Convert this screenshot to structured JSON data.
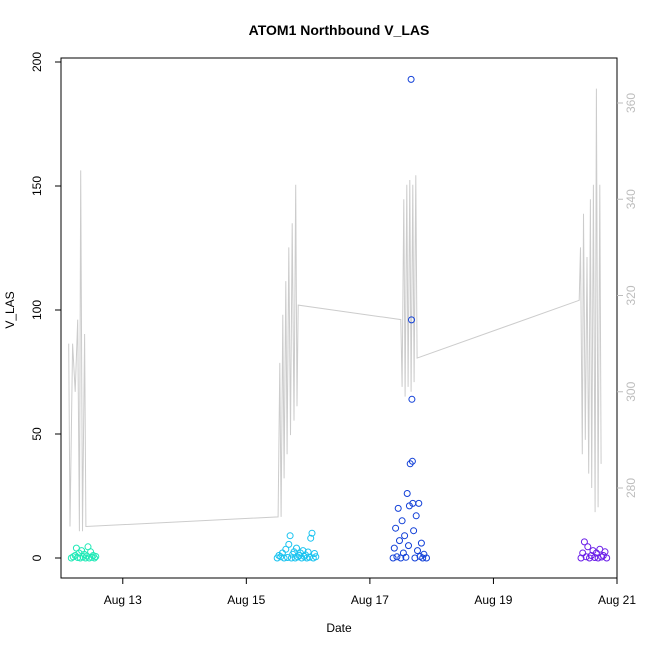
{
  "chart_data": {
    "type": "scatter",
    "title": "ATOM1 Northbound V_LAS",
    "xlabel": "Date",
    "ylabel": "V_LAS",
    "xlim": [
      "2023-08-12T00:00:00",
      "2023-08-21T00:00:00"
    ],
    "ylim_left": [
      0,
      200
    ],
    "ylim_right": [
      260,
      365
    ],
    "x_ticks": [
      {
        "label": "Aug 13",
        "date": "2023-08-13T00:00:00"
      },
      {
        "label": "Aug 15",
        "date": "2023-08-15T00:00:00"
      },
      {
        "label": "Aug 17",
        "date": "2023-08-17T00:00:00"
      },
      {
        "label": "Aug 19",
        "date": "2023-08-19T00:00:00"
      },
      {
        "label": "Aug 21",
        "date": "2023-08-21T00:00:00"
      }
    ],
    "y_ticks_left": [
      0,
      50,
      100,
      150,
      200
    ],
    "y_ticks_right": [
      280,
      300,
      320,
      340,
      360
    ],
    "grid": false,
    "series": [
      {
        "kind": "scatter",
        "axis": "left",
        "color": "#1de9b6",
        "points": [
          [
            "2023-08-12T04:00:00",
            0
          ],
          [
            "2023-08-12T04:45:00",
            0.5
          ],
          [
            "2023-08-12T05:30:00",
            1
          ],
          [
            "2023-08-12T06:00:00",
            4
          ],
          [
            "2023-08-12T06:30:00",
            0.2
          ],
          [
            "2023-08-12T07:00:00",
            2
          ],
          [
            "2023-08-12T07:30:00",
            0
          ],
          [
            "2023-08-12T08:00:00",
            3
          ],
          [
            "2023-08-12T08:30:00",
            0.5
          ],
          [
            "2023-08-12T09:00:00",
            1.5
          ],
          [
            "2023-08-12T09:30:00",
            0
          ],
          [
            "2023-08-12T10:00:00",
            0.8
          ],
          [
            "2023-08-12T10:30:00",
            4.5
          ],
          [
            "2023-08-12T11:00:00",
            0
          ],
          [
            "2023-08-12T11:30:00",
            2.5
          ],
          [
            "2023-08-12T12:00:00",
            0.3
          ],
          [
            "2023-08-12T12:30:00",
            1
          ],
          [
            "2023-08-12T13:00:00",
            0
          ],
          [
            "2023-08-12T13:30:00",
            0.6
          ]
        ]
      },
      {
        "kind": "scatter",
        "axis": "left",
        "color": "#19c3f0",
        "points": [
          [
            "2023-08-15T12:00:00",
            0
          ],
          [
            "2023-08-15T12:40:00",
            1
          ],
          [
            "2023-08-15T13:20:00",
            0.5
          ],
          [
            "2023-08-15T14:00:00",
            2
          ],
          [
            "2023-08-15T14:40:00",
            0
          ],
          [
            "2023-08-15T15:20:00",
            3.5
          ],
          [
            "2023-08-15T16:00:00",
            0.2
          ],
          [
            "2023-08-15T16:30:00",
            5.5
          ],
          [
            "2023-08-15T17:00:00",
            9
          ],
          [
            "2023-08-15T17:30:00",
            0
          ],
          [
            "2023-08-15T18:00:00",
            1.5
          ],
          [
            "2023-08-15T18:30:00",
            2.5
          ],
          [
            "2023-08-15T19:00:00",
            0
          ],
          [
            "2023-08-15T19:30:00",
            4
          ],
          [
            "2023-08-15T20:00:00",
            0.4
          ],
          [
            "2023-08-15T20:30:00",
            1
          ],
          [
            "2023-08-15T21:00:00",
            2
          ],
          [
            "2023-08-15T21:30:00",
            0
          ],
          [
            "2023-08-15T22:00:00",
            3
          ],
          [
            "2023-08-15T22:30:00",
            0.6
          ],
          [
            "2023-08-15T23:00:00",
            1.2
          ],
          [
            "2023-08-15T23:30:00",
            0
          ],
          [
            "2023-08-16T00:00:00",
            2.4
          ],
          [
            "2023-08-16T00:30:00",
            0.3
          ],
          [
            "2023-08-16T01:00:00",
            8
          ],
          [
            "2023-08-16T01:30:00",
            10
          ],
          [
            "2023-08-16T02:00:00",
            0
          ],
          [
            "2023-08-16T02:30:00",
            1.8
          ],
          [
            "2023-08-16T03:00:00",
            0.5
          ]
        ]
      },
      {
        "kind": "scatter",
        "axis": "left",
        "color": "#1240d8",
        "points": [
          [
            "2023-08-17T09:00:00",
            0
          ],
          [
            "2023-08-17T09:30:00",
            4
          ],
          [
            "2023-08-17T10:00:00",
            12
          ],
          [
            "2023-08-17T10:30:00",
            0.5
          ],
          [
            "2023-08-17T11:00:00",
            20
          ],
          [
            "2023-08-17T11:30:00",
            7
          ],
          [
            "2023-08-17T12:00:00",
            0
          ],
          [
            "2023-08-17T12:30:00",
            15
          ],
          [
            "2023-08-17T13:00:00",
            2
          ],
          [
            "2023-08-17T13:30:00",
            9
          ],
          [
            "2023-08-17T14:00:00",
            0.3
          ],
          [
            "2023-08-17T14:30:00",
            26
          ],
          [
            "2023-08-17T15:00:00",
            5
          ],
          [
            "2023-08-17T15:20:00",
            21
          ],
          [
            "2023-08-17T15:40:00",
            38
          ],
          [
            "2023-08-17T16:00:00",
            193
          ],
          [
            "2023-08-17T16:10:00",
            96
          ],
          [
            "2023-08-17T16:20:00",
            64
          ],
          [
            "2023-08-17T16:30:00",
            39
          ],
          [
            "2023-08-17T16:40:00",
            22
          ],
          [
            "2023-08-17T17:00:00",
            11
          ],
          [
            "2023-08-17T17:30:00",
            0
          ],
          [
            "2023-08-17T18:00:00",
            17
          ],
          [
            "2023-08-17T18:30:00",
            3
          ],
          [
            "2023-08-17T19:00:00",
            22
          ],
          [
            "2023-08-17T19:30:00",
            0.6
          ],
          [
            "2023-08-17T20:00:00",
            6
          ],
          [
            "2023-08-17T20:30:00",
            0
          ],
          [
            "2023-08-17T21:00:00",
            1.5
          ],
          [
            "2023-08-17T22:00:00",
            0
          ]
        ]
      },
      {
        "kind": "scatter",
        "axis": "left",
        "color": "#6a1de8",
        "points": [
          [
            "2023-08-20T10:00:00",
            0
          ],
          [
            "2023-08-20T10:40:00",
            2
          ],
          [
            "2023-08-20T11:20:00",
            6.5
          ],
          [
            "2023-08-20T12:00:00",
            0.5
          ],
          [
            "2023-08-20T12:40:00",
            4.5
          ],
          [
            "2023-08-20T13:20:00",
            0
          ],
          [
            "2023-08-20T14:00:00",
            1
          ],
          [
            "2023-08-20T14:40:00",
            3
          ],
          [
            "2023-08-20T15:20:00",
            0.2
          ],
          [
            "2023-08-20T16:00:00",
            2
          ],
          [
            "2023-08-20T16:40:00",
            0
          ],
          [
            "2023-08-20T17:20:00",
            3.5
          ],
          [
            "2023-08-20T18:00:00",
            0.4
          ],
          [
            "2023-08-20T18:40:00",
            1
          ],
          [
            "2023-08-20T19:20:00",
            2.5
          ],
          [
            "2023-08-20T20:00:00",
            0
          ]
        ]
      },
      {
        "kind": "line",
        "axis": "right",
        "color": "#cccccc",
        "points": [
          [
            "2023-08-12T03:00:00",
            310
          ],
          [
            "2023-08-12T03:30:00",
            272
          ],
          [
            "2023-08-12T04:30:00",
            310
          ],
          [
            "2023-08-12T05:30:00",
            300
          ],
          [
            "2023-08-12T06:30:00",
            315
          ],
          [
            "2023-08-12T07:10:00",
            271
          ],
          [
            "2023-08-12T07:40:00",
            346
          ],
          [
            "2023-08-12T08:20:00",
            271
          ],
          [
            "2023-08-12T09:10:00",
            312
          ],
          [
            "2023-08-12T09:40:00",
            272
          ],
          [
            "2023-08-15T12:20:00",
            274
          ],
          [
            "2023-08-15T13:00:00",
            306
          ],
          [
            "2023-08-15T13:30:00",
            274
          ],
          [
            "2023-08-15T14:10:00",
            316
          ],
          [
            "2023-08-15T14:40:00",
            282
          ],
          [
            "2023-08-15T15:20:00",
            323
          ],
          [
            "2023-08-15T15:50:00",
            287
          ],
          [
            "2023-08-15T16:30:00",
            330
          ],
          [
            "2023-08-15T17:10:00",
            291
          ],
          [
            "2023-08-15T17:50:00",
            335
          ],
          [
            "2023-08-15T18:30:00",
            294
          ],
          [
            "2023-08-15T19:10:00",
            343
          ],
          [
            "2023-08-15T19:40:00",
            297
          ],
          [
            "2023-08-15T20:10:00",
            318
          ],
          [
            "2023-08-17T12:00:00",
            315
          ],
          [
            "2023-08-17T12:30:00",
            301
          ],
          [
            "2023-08-17T13:10:00",
            340
          ],
          [
            "2023-08-17T13:40:00",
            299
          ],
          [
            "2023-08-17T14:20:00",
            343
          ],
          [
            "2023-08-17T14:50:00",
            301
          ],
          [
            "2023-08-17T15:30:00",
            344
          ],
          [
            "2023-08-17T16:00:00",
            300
          ],
          [
            "2023-08-17T16:40:00",
            343
          ],
          [
            "2023-08-17T17:10:00",
            302
          ],
          [
            "2023-08-17T17:50:00",
            345
          ],
          [
            "2023-08-17T18:20:00",
            307
          ],
          [
            "2023-08-20T09:20:00",
            319
          ],
          [
            "2023-08-20T09:50:00",
            330
          ],
          [
            "2023-08-20T10:30:00",
            287
          ],
          [
            "2023-08-20T11:00:00",
            337
          ],
          [
            "2023-08-20T11:40:00",
            290
          ],
          [
            "2023-08-20T12:20:00",
            328
          ],
          [
            "2023-08-20T13:00:00",
            283
          ],
          [
            "2023-08-20T13:40:00",
            340
          ],
          [
            "2023-08-20T14:10:00",
            280
          ],
          [
            "2023-08-20T14:50:00",
            343
          ],
          [
            "2023-08-20T15:30:00",
            275
          ],
          [
            "2023-08-20T16:00:00",
            363
          ],
          [
            "2023-08-20T16:40:00",
            276
          ],
          [
            "2023-08-20T17:20:00",
            343
          ],
          [
            "2023-08-20T17:50:00",
            285
          ]
        ]
      }
    ]
  }
}
